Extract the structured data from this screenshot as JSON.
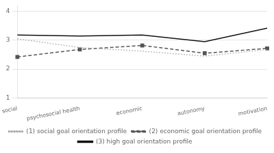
{
  "chart_data": {
    "type": "line",
    "categories": [
      "social",
      "psychosocial health",
      "economic",
      "autonomy",
      "motivation"
    ],
    "series": [
      {
        "name": "(1) social goal orientation profile",
        "color": "#aaaaaa",
        "line_style": "dotted",
        "marker": "none",
        "values": [
          3.05,
          2.75,
          2.62,
          2.45,
          2.68
        ]
      },
      {
        "name": "(2) economic goal orientation profile",
        "color": "#555555",
        "line_style": "dashed",
        "marker": "square",
        "values": [
          2.42,
          2.68,
          2.82,
          2.55,
          2.72
        ]
      },
      {
        "name": "(3) high goal orientation profile",
        "color": "#111111",
        "line_style": "solid",
        "marker": "none",
        "values": [
          3.18,
          3.15,
          3.18,
          2.95,
          3.42
        ]
      }
    ],
    "ylim": [
      1.0,
      4.2
    ],
    "yticks": [
      4,
      3,
      2,
      1
    ],
    "grid": true,
    "legend": "bottom"
  }
}
